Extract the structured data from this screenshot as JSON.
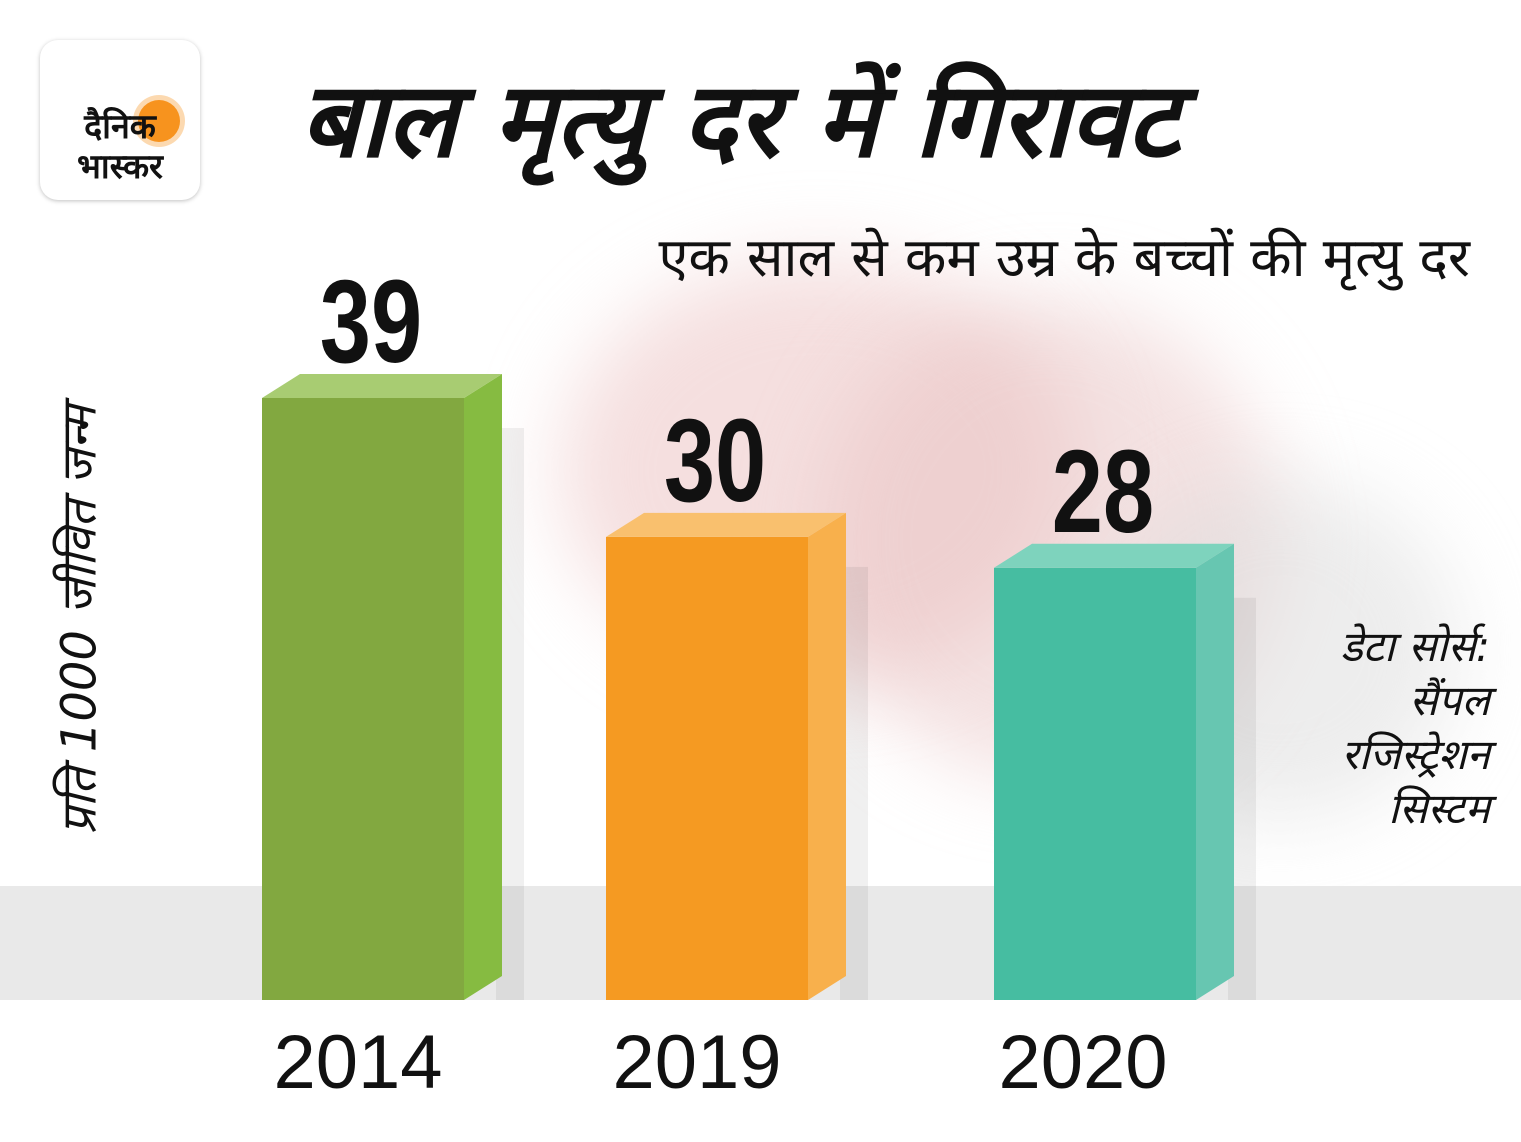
{
  "brand": {
    "logo_line1": "दैनिक",
    "logo_line2": "भास्कर"
  },
  "title": "बाल मृत्यु दर में गिरावट",
  "subtitle": "एक साल से कम उम्र के बच्चों की मृत्यु दर",
  "source": [
    "डेटा सोर्स:",
    "सैंपल",
    "रजिस्ट्रेशन",
    "सिस्टम"
  ],
  "colors": {
    "2014": {
      "front": "#82a840",
      "side": "#86bb41",
      "top": "#a8cc72"
    },
    "2019": {
      "front": "#f59a22",
      "side": "#f8b04c",
      "top": "#f9c06e"
    },
    "2020": {
      "front": "#46bda1",
      "side": "#67c6b1",
      "top": "#7ed3bd"
    }
  },
  "chart_data": {
    "type": "bar",
    "title": "बाल मृत्यु दर में गिरावट",
    "subtitle": "एक साल से कम उम्र के बच्चों की मृत्यु दर",
    "ylabel": "प्रति 1000 जीवित जन्म",
    "xlabel": "",
    "categories": [
      "2014",
      "2019",
      "2020"
    ],
    "values": [
      39,
      30,
      28
    ],
    "data_labels": [
      "39",
      "30",
      "28"
    ],
    "ylim": [
      0,
      39
    ],
    "grid": false,
    "legend": "none"
  }
}
